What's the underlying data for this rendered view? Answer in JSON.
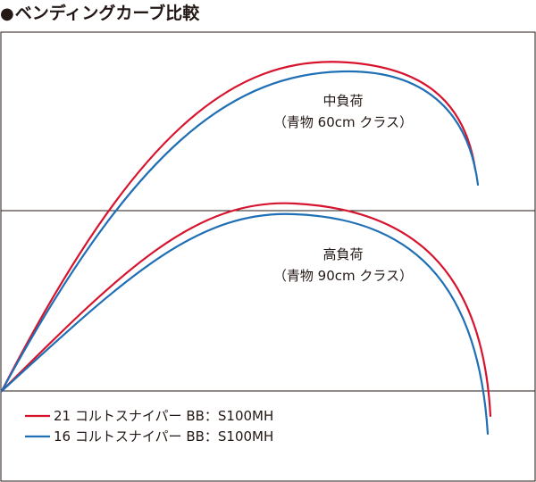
{
  "header": {
    "bullet": "●",
    "title": "ベンディングカーブ比較"
  },
  "chart_data": {
    "type": "line",
    "title": "ベンディングカーブ比較",
    "grid": true,
    "legend_placement": "bottom-left",
    "colors": {
      "red": "#d7142e",
      "blue": "#1f6fb5",
      "frame": "#231815"
    },
    "groups": [
      {
        "id": "mid",
        "label_lines": [
          "中負荷",
          "（青物 60cm クラス）"
        ],
        "series": [
          {
            "name": "21 コルトスナイパー BB：S100MH",
            "color": "red"
          },
          {
            "name": "16 コルトスナイパー BB：S100MH",
            "color": "blue"
          }
        ]
      },
      {
        "id": "high",
        "label_lines": [
          "高負荷",
          "（青物 90cm クラス）"
        ],
        "series": [
          {
            "name": "21 コルトスナイパー BB：S100MH",
            "color": "red"
          },
          {
            "name": "16 コルトスナイパー BB：S100MH",
            "color": "blue"
          }
        ]
      }
    ]
  },
  "legend": [
    {
      "label": "21 コルトスナイパー BB：S100MH",
      "color": "#d7142e"
    },
    {
      "label": "16 コルトスナイパー BB：S100MH",
      "color": "#1f6fb5"
    }
  ]
}
